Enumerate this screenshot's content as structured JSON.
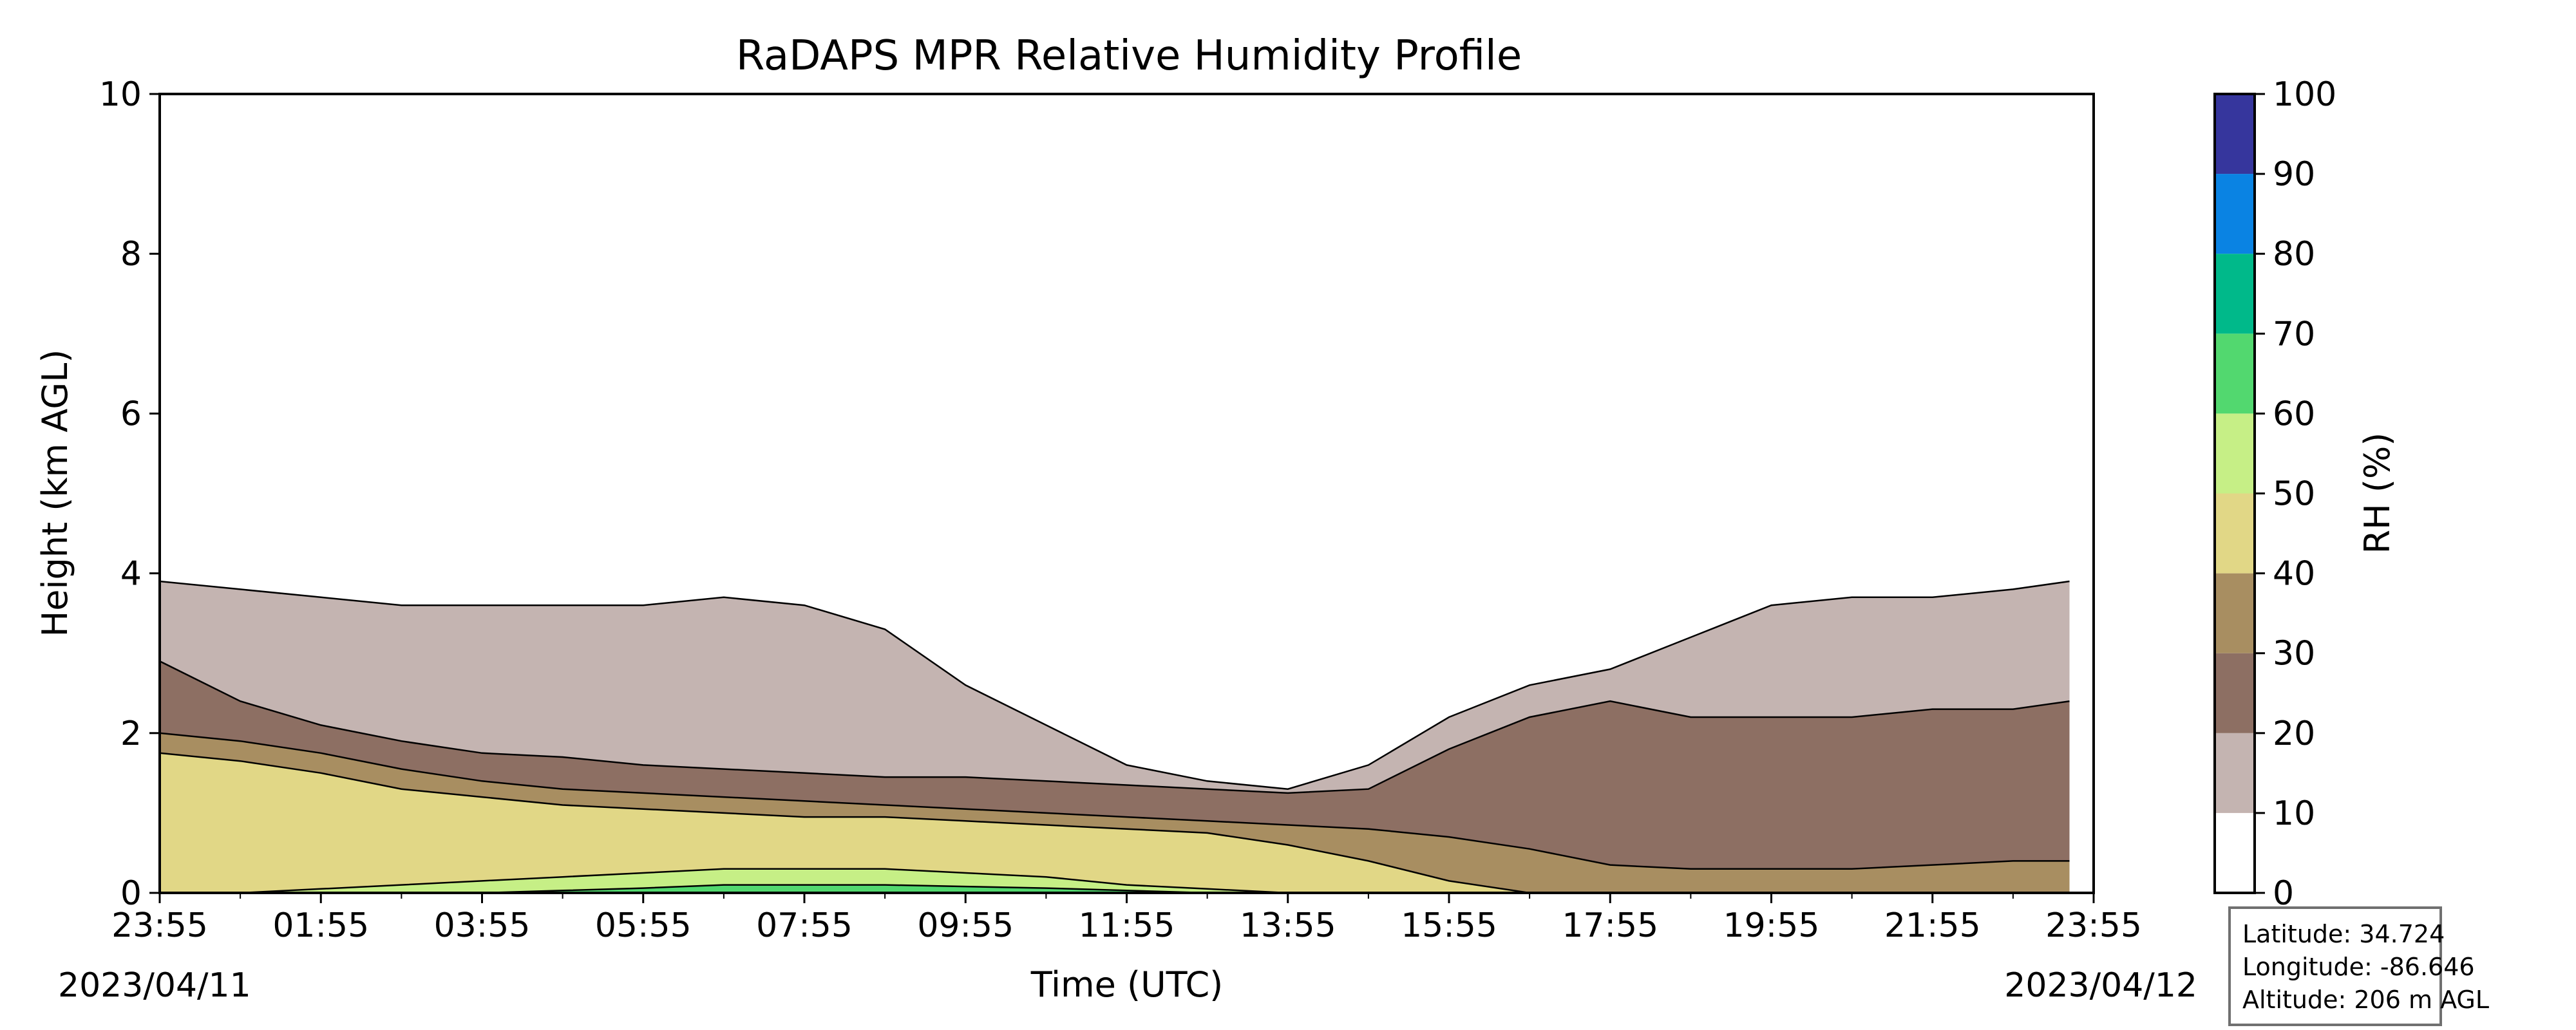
{
  "chart_data": {
    "type": "heatmap",
    "subtype": "filled-contour",
    "title": "RaDAPS MPR Relative Humidity Profile",
    "xlabel": "Time (UTC)",
    "ylabel": "Height (km AGL)",
    "x_ticks": [
      "23:55",
      "01:55",
      "03:55",
      "05:55",
      "07:55",
      "09:55",
      "11:55",
      "13:55",
      "15:55",
      "17:55",
      "19:55",
      "21:55",
      "23:55"
    ],
    "x_start_date": "2023/04/11",
    "x_end_date": "2023/04/12",
    "y_ticks": [
      0,
      2,
      4,
      6,
      8,
      10
    ],
    "ylim": [
      0,
      10
    ],
    "colorbar": {
      "label": "RH (%)",
      "ticks": [
        0,
        10,
        20,
        30,
        40,
        50,
        60,
        70,
        80,
        90,
        100
      ],
      "levels": [
        {
          "range": [
            0,
            10
          ],
          "color": "#ffffff"
        },
        {
          "range": [
            10,
            20
          ],
          "color": "#c4b4b1"
        },
        {
          "range": [
            20,
            30
          ],
          "color": "#8d6f63"
        },
        {
          "range": [
            30,
            40
          ],
          "color": "#a88e61"
        },
        {
          "range": [
            40,
            50
          ],
          "color": "#e1d786"
        },
        {
          "range": [
            50,
            60
          ],
          "color": "#c6ef86"
        },
        {
          "range": [
            60,
            70
          ],
          "color": "#52d86f"
        },
        {
          "range": [
            70,
            80
          ],
          "color": "#00b98a"
        },
        {
          "range": [
            80,
            90
          ],
          "color": "#0a83e3"
        },
        {
          "range": [
            90,
            100
          ],
          "color": "#36369d"
        }
      ]
    },
    "grid": false,
    "legend": "none",
    "hours": [
      0,
      1,
      2,
      3,
      4,
      5,
      6,
      7,
      8,
      9,
      10,
      11,
      12,
      13,
      14,
      15,
      16,
      17,
      18,
      19,
      20,
      21,
      22,
      23,
      23.7
    ],
    "contour_heights_km": {
      "rh_10": [
        3.9,
        3.8,
        3.7,
        3.6,
        3.6,
        3.6,
        3.6,
        3.7,
        3.6,
        3.3,
        2.6,
        2.1,
        1.6,
        1.4,
        1.3,
        1.6,
        2.2,
        2.6,
        2.8,
        3.2,
        3.6,
        3.7,
        3.7,
        3.8,
        3.9
      ],
      "rh_20": [
        2.9,
        2.4,
        2.1,
        1.9,
        1.75,
        1.7,
        1.6,
        1.55,
        1.5,
        1.45,
        1.45,
        1.4,
        1.35,
        1.3,
        1.25,
        1.3,
        1.8,
        2.2,
        2.4,
        2.2,
        2.2,
        2.2,
        2.3,
        2.3,
        2.4
      ],
      "rh_30": [
        2.0,
        1.9,
        1.75,
        1.55,
        1.4,
        1.3,
        1.25,
        1.2,
        1.15,
        1.1,
        1.05,
        1.0,
        0.95,
        0.9,
        0.85,
        0.8,
        0.7,
        0.55,
        0.35,
        0.3,
        0.3,
        0.3,
        0.35,
        0.4,
        0.4
      ],
      "rh_40": [
        1.75,
        1.65,
        1.5,
        1.3,
        1.2,
        1.1,
        1.05,
        1.0,
        0.95,
        0.95,
        0.9,
        0.85,
        0.8,
        0.75,
        0.6,
        0.4,
        0.15,
        0,
        0,
        0,
        0,
        0,
        0,
        0,
        0
      ],
      "rh_50": [
        0,
        0,
        0.05,
        0.1,
        0.15,
        0.2,
        0.25,
        0.3,
        0.3,
        0.3,
        0.25,
        0.2,
        0.1,
        0.05,
        0,
        0,
        0,
        0,
        0,
        0,
        0,
        0,
        0,
        0,
        0
      ],
      "rh_60": [
        0,
        0,
        0,
        0,
        0,
        0.03,
        0.06,
        0.1,
        0.1,
        0.1,
        0.08,
        0.06,
        0.03,
        0,
        0,
        0,
        0,
        0,
        0,
        0,
        0,
        0,
        0,
        0,
        0
      ]
    }
  },
  "info": {
    "latitude": "Latitude: 34.724",
    "longitude": "Longitude: -86.646",
    "altitude": "Altitude: 206 m AGL"
  }
}
